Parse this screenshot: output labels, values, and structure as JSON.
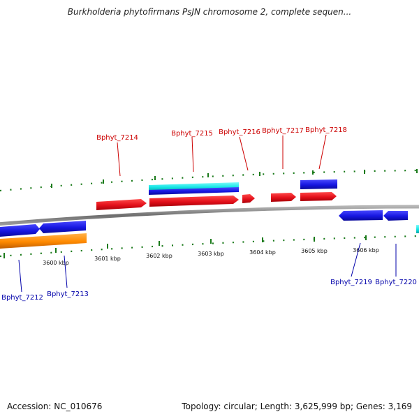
{
  "title": "Burkholderia phytofirmans PsJN chromosome 2, complete sequen...",
  "footer": {
    "accession": "Accession: NC_010676",
    "summary": "Topology: circular; Length: 3,625,999 bp; Genes: 3,169"
  },
  "colors": {
    "forward_label": "#cc0000",
    "reverse_label": "#0000aa",
    "cds_forward": "#e8141c",
    "cds_reverse": "#1b1be0",
    "rna": "#19e6e6",
    "orange_feature": "#ff8c00",
    "backbone": "#808080",
    "tick": "#1a7a1a"
  },
  "scale_ticks": [
    {
      "label": "3600 kbp"
    },
    {
      "label": "3601 kbp"
    },
    {
      "label": "3602 kbp"
    },
    {
      "label": "3603 kbp"
    },
    {
      "label": "3604 kbp"
    },
    {
      "label": "3605 kbp"
    },
    {
      "label": "3606 kbp"
    }
  ],
  "gene_labels_forward": [
    {
      "label": "Bphyt_7214"
    },
    {
      "label": "Bphyt_7215"
    },
    {
      "label": "Bphyt_7216"
    },
    {
      "label": "Bphyt_7217"
    },
    {
      "label": "Bphyt_7218"
    }
  ],
  "gene_labels_reverse": [
    {
      "label": "Bphyt_7212"
    },
    {
      "label": "Bphyt_7213"
    },
    {
      "label": "Bphyt_7219"
    },
    {
      "label": "Bphyt_7220"
    }
  ]
}
